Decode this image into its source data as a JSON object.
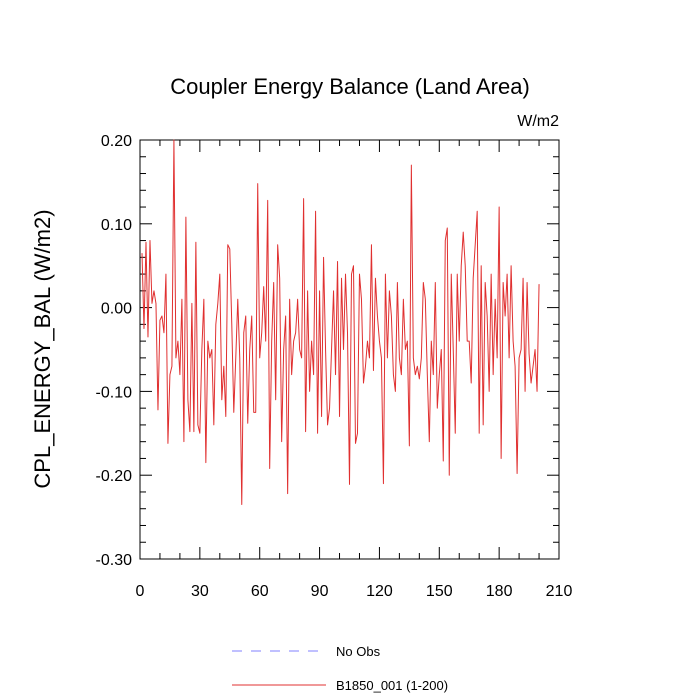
{
  "chart_data": {
    "type": "line",
    "title": "Coupler Energy Balance (Land Area)",
    "units": "W/m2",
    "ylabel": "CPL_ENERGY_BAL  (W/m2)",
    "xlabel": "",
    "xlim": [
      0,
      210
    ],
    "ylim": [
      -0.3,
      0.2
    ],
    "x_ticks": [
      0,
      30,
      60,
      90,
      120,
      150,
      180,
      210
    ],
    "x_tick_labels": [
      "0",
      "30",
      "60",
      "90",
      "120",
      "150",
      "180",
      "210"
    ],
    "y_ticks": [
      -0.3,
      -0.2,
      -0.1,
      0.0,
      0.1,
      0.2
    ],
    "y_tick_labels": [
      "-0.30",
      "-0.20",
      "-0.10",
      "0.00",
      "0.10",
      "0.20"
    ],
    "grid": false,
    "legend": [
      {
        "name": "No Obs",
        "color": "#8080ff",
        "dash": true
      },
      {
        "name": "B1850_001 (1-200)",
        "color": "#e03030",
        "dash": false
      }
    ],
    "series": [
      {
        "name": "B1850_001 (1-200)",
        "color": "#e03030",
        "x_start": 1,
        "values": [
          0.065,
          -0.025,
          0.078,
          -0.035,
          0.08,
          0.005,
          0.02,
          0.005,
          -0.122,
          -0.015,
          -0.01,
          -0.03,
          0.04,
          -0.162,
          -0.08,
          -0.07,
          0.2,
          -0.06,
          -0.04,
          -0.08,
          0.01,
          -0.16,
          0.108,
          -0.11,
          -0.148,
          0.005,
          -0.148,
          0.078,
          -0.14,
          -0.15,
          -0.05,
          0.01,
          -0.185,
          -0.04,
          -0.06,
          -0.05,
          -0.14,
          -0.02,
          0.005,
          0.04,
          -0.11,
          -0.07,
          -0.13,
          0.075,
          0.07,
          -0.02,
          -0.125,
          -0.06,
          0.01,
          -0.06,
          -0.235,
          -0.03,
          -0.01,
          -0.138,
          -0.05,
          -0.01,
          -0.125,
          -0.125,
          0.148,
          -0.06,
          -0.03,
          0.025,
          -0.04,
          0.128,
          -0.192,
          -0.04,
          0.03,
          -0.11,
          0.075,
          0.035,
          -0.16,
          -0.05,
          -0.01,
          -0.222,
          0.01,
          -0.08,
          -0.04,
          -0.03,
          0.01,
          -0.05,
          -0.06,
          0.13,
          -0.148,
          0.02,
          -0.1,
          -0.04,
          -0.08,
          0.115,
          -0.15,
          0.02,
          -0.13,
          0.06,
          -0.05,
          -0.14,
          -0.12,
          -0.05,
          0.02,
          -0.08,
          0.055,
          -0.13,
          0.035,
          -0.05,
          0.04,
          -0.03,
          -0.211,
          0.04,
          0.05,
          -0.162,
          -0.15,
          0.04,
          0.01,
          -0.09,
          -0.07,
          -0.04,
          -0.06,
          0.075,
          -0.075,
          0.035,
          -0.01,
          -0.04,
          -0.06,
          -0.21,
          0.04,
          -0.06,
          0.02,
          -0.01,
          -0.08,
          -0.1,
          0.03,
          -0.06,
          -0.08,
          0.01,
          -0.05,
          -0.04,
          -0.165,
          0.17,
          -0.06,
          -0.08,
          -0.07,
          -0.085,
          -0.06,
          0.03,
          0.01,
          -0.08,
          -0.16,
          -0.04,
          -0.08,
          0.03,
          -0.12,
          -0.08,
          -0.05,
          -0.183,
          0.08,
          0.095,
          -0.2,
          0.04,
          -0.05,
          -0.15,
          0.04,
          -0.04,
          0.05,
          0.09,
          0.05,
          -0.04,
          -0.04,
          -0.09,
          0.035,
          0.075,
          0.115,
          -0.15,
          0.05,
          -0.14,
          0.03,
          -0.01,
          -0.1,
          0.04,
          -0.08,
          0.01,
          -0.06,
          0.12,
          -0.18,
          0.03,
          -0.01,
          0.04,
          -0.06,
          0.05,
          -0.04,
          -0.07,
          -0.198,
          -0.06,
          -0.05,
          0.035,
          -0.1,
          0.03,
          -0.055,
          -0.09,
          -0.07,
          -0.05,
          -0.1,
          0.028
        ]
      }
    ]
  }
}
